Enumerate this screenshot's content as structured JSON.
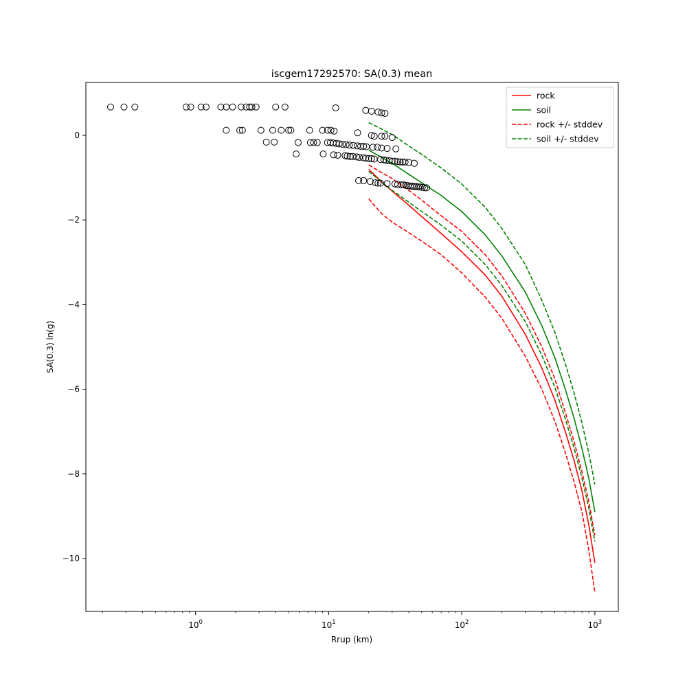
{
  "chart_data": {
    "type": "scatter",
    "title": "iscgem17292570: SA(0.3) mean",
    "xlabel": "Rrup (km)",
    "ylabel": "SA(0.3) ln(g)",
    "xscale": "log",
    "xlim": [
      0.15,
      1500
    ],
    "ylim": [
      -11.25,
      1.25
    ],
    "y_ticks": [
      0,
      -2,
      -4,
      -6,
      -8,
      -10
    ],
    "x_ticks": [
      {
        "base": "10",
        "exp": "0",
        "value": 1
      },
      {
        "base": "10",
        "exp": "1",
        "value": 10
      },
      {
        "base": "10",
        "exp": "2",
        "value": 100
      },
      {
        "base": "10",
        "exp": "3",
        "value": 1000
      }
    ],
    "grid": false,
    "legend_position": "top-right",
    "legend": [
      {
        "label": "rock",
        "color": "#ff0000",
        "style": "solid"
      },
      {
        "label": "soil",
        "color": "#008000",
        "style": "solid"
      },
      {
        "label": "rock +/- stddev",
        "color": "#ff0000",
        "style": "dashed"
      },
      {
        "label": "soil +/- stddev",
        "color": "#008000",
        "style": "dashed"
      }
    ],
    "series": [
      {
        "name": "rock",
        "color": "#ff0000",
        "style": "solid",
        "points": [
          [
            20,
            -0.8
          ],
          [
            25,
            -1.1
          ],
          [
            30,
            -1.32
          ],
          [
            40,
            -1.65
          ],
          [
            50,
            -1.92
          ],
          [
            70,
            -2.32
          ],
          [
            100,
            -2.75
          ],
          [
            150,
            -3.3
          ],
          [
            200,
            -3.8
          ],
          [
            300,
            -4.7
          ],
          [
            400,
            -5.5
          ],
          [
            500,
            -6.25
          ],
          [
            600,
            -7.0
          ],
          [
            700,
            -7.7
          ],
          [
            800,
            -8.4
          ],
          [
            900,
            -9.2
          ],
          [
            1000,
            -10.1
          ]
        ]
      },
      {
        "name": "soil",
        "color": "#008000",
        "style": "solid",
        "points": [
          [
            20,
            -0.35
          ],
          [
            25,
            -0.52
          ],
          [
            30,
            -0.66
          ],
          [
            40,
            -0.92
          ],
          [
            50,
            -1.12
          ],
          [
            70,
            -1.42
          ],
          [
            100,
            -1.8
          ],
          [
            150,
            -2.35
          ],
          [
            200,
            -2.85
          ],
          [
            300,
            -3.7
          ],
          [
            400,
            -4.5
          ],
          [
            500,
            -5.25
          ],
          [
            600,
            -6.0
          ],
          [
            700,
            -6.7
          ],
          [
            800,
            -7.4
          ],
          [
            900,
            -8.1
          ],
          [
            1000,
            -8.9
          ]
        ]
      },
      {
        "name": "rock +/- stddev",
        "color": "#ff0000",
        "style": "dashed",
        "points": [
          [
            20,
            -0.7
          ],
          [
            25,
            -0.88
          ],
          [
            30,
            -1.02
          ],
          [
            40,
            -1.3
          ],
          [
            50,
            -1.53
          ],
          [
            70,
            -1.9
          ],
          [
            100,
            -2.27
          ],
          [
            150,
            -2.82
          ],
          [
            200,
            -3.32
          ],
          [
            300,
            -4.2
          ],
          [
            400,
            -5.0
          ],
          [
            500,
            -5.75
          ],
          [
            600,
            -6.55
          ],
          [
            700,
            -7.25
          ],
          [
            800,
            -7.95
          ],
          [
            900,
            -8.65
          ],
          [
            1000,
            -9.45
          ]
        ]
      },
      {
        "name": "rock +/- stddev",
        "color": "#ff0000",
        "style": "dashed",
        "points": [
          [
            20,
            -1.5
          ],
          [
            25,
            -1.85
          ],
          [
            30,
            -2.05
          ],
          [
            40,
            -2.3
          ],
          [
            50,
            -2.5
          ],
          [
            70,
            -2.82
          ],
          [
            100,
            -3.25
          ],
          [
            150,
            -3.82
          ],
          [
            200,
            -4.32
          ],
          [
            300,
            -5.22
          ],
          [
            400,
            -6.0
          ],
          [
            500,
            -6.75
          ],
          [
            600,
            -7.5
          ],
          [
            700,
            -8.2
          ],
          [
            800,
            -8.9
          ],
          [
            900,
            -9.8
          ],
          [
            1000,
            -10.8
          ]
        ]
      },
      {
        "name": "soil +/- stddev",
        "color": "#008000",
        "style": "dashed",
        "points": [
          [
            20,
            0.3
          ],
          [
            25,
            0.15
          ],
          [
            30,
            0.02
          ],
          [
            40,
            -0.25
          ],
          [
            50,
            -0.45
          ],
          [
            70,
            -0.77
          ],
          [
            100,
            -1.15
          ],
          [
            150,
            -1.7
          ],
          [
            200,
            -2.2
          ],
          [
            300,
            -3.05
          ],
          [
            400,
            -3.9
          ],
          [
            500,
            -4.65
          ],
          [
            600,
            -5.4
          ],
          [
            700,
            -6.1
          ],
          [
            800,
            -6.8
          ],
          [
            900,
            -7.5
          ],
          [
            1000,
            -8.25
          ]
        ]
      },
      {
        "name": "soil +/- stddev",
        "color": "#008000",
        "style": "dashed",
        "points": [
          [
            20,
            -0.85
          ],
          [
            25,
            -1.1
          ],
          [
            30,
            -1.3
          ],
          [
            40,
            -1.58
          ],
          [
            50,
            -1.8
          ],
          [
            70,
            -2.12
          ],
          [
            100,
            -2.5
          ],
          [
            150,
            -3.05
          ],
          [
            200,
            -3.55
          ],
          [
            300,
            -4.4
          ],
          [
            400,
            -5.2
          ],
          [
            500,
            -5.95
          ],
          [
            600,
            -6.7
          ],
          [
            700,
            -7.4
          ],
          [
            800,
            -8.1
          ],
          [
            900,
            -8.8
          ],
          [
            1000,
            -9.6
          ]
        ]
      }
    ],
    "observations": [
      [
        0.23,
        0.67
      ],
      [
        0.29,
        0.67
      ],
      [
        0.35,
        0.67
      ],
      [
        0.85,
        0.67
      ],
      [
        0.92,
        0.67
      ],
      [
        1.1,
        0.67
      ],
      [
        1.2,
        0.67
      ],
      [
        1.55,
        0.67
      ],
      [
        1.7,
        0.67
      ],
      [
        1.9,
        0.67
      ],
      [
        2.2,
        0.67
      ],
      [
        2.4,
        0.67
      ],
      [
        2.55,
        0.67
      ],
      [
        2.65,
        0.67
      ],
      [
        2.85,
        0.67
      ],
      [
        4.0,
        0.67
      ],
      [
        4.7,
        0.67
      ],
      [
        11.3,
        0.65
      ],
      [
        19,
        0.59
      ],
      [
        21,
        0.57
      ],
      [
        23.5,
        0.55
      ],
      [
        25,
        0.53
      ],
      [
        26.5,
        0.52
      ],
      [
        1.7,
        0.12
      ],
      [
        2.15,
        0.12
      ],
      [
        2.25,
        0.12
      ],
      [
        3.1,
        0.12
      ],
      [
        3.8,
        0.12
      ],
      [
        4.4,
        0.12
      ],
      [
        5.0,
        0.12
      ],
      [
        5.2,
        0.12
      ],
      [
        7.2,
        0.12
      ],
      [
        9.0,
        0.12
      ],
      [
        9.8,
        0.12
      ],
      [
        10.4,
        0.12
      ],
      [
        11.0,
        0.1
      ],
      [
        16.5,
        0.06
      ],
      [
        21,
        0.0
      ],
      [
        22,
        -0.02
      ],
      [
        25,
        -0.02
      ],
      [
        26.5,
        -0.02
      ],
      [
        30,
        -0.05
      ],
      [
        3.4,
        -0.16
      ],
      [
        3.9,
        -0.16
      ],
      [
        5.9,
        -0.17
      ],
      [
        7.3,
        -0.17
      ],
      [
        7.7,
        -0.17
      ],
      [
        8.2,
        -0.17
      ],
      [
        9.8,
        -0.17
      ],
      [
        10.3,
        -0.17
      ],
      [
        10.8,
        -0.18
      ],
      [
        11.4,
        -0.19
      ],
      [
        12.0,
        -0.2
      ],
      [
        12.7,
        -0.21
      ],
      [
        13.5,
        -0.22
      ],
      [
        14.3,
        -0.23
      ],
      [
        15.3,
        -0.24
      ],
      [
        16.4,
        -0.25
      ],
      [
        17.4,
        -0.26
      ],
      [
        18.3,
        -0.26
      ],
      [
        19.2,
        -0.27
      ],
      [
        21.5,
        -0.28
      ],
      [
        23.2,
        -0.28
      ],
      [
        25.0,
        -0.3
      ],
      [
        27.5,
        -0.31
      ],
      [
        32.0,
        -0.32
      ],
      [
        5.7,
        -0.44
      ],
      [
        9.1,
        -0.44
      ],
      [
        10.9,
        -0.46
      ],
      [
        11.7,
        -0.47
      ],
      [
        13.3,
        -0.48
      ],
      [
        13.8,
        -0.49
      ],
      [
        14.5,
        -0.5
      ],
      [
        15.2,
        -0.5
      ],
      [
        16.2,
        -0.51
      ],
      [
        17.0,
        -0.52
      ],
      [
        18.2,
        -0.53
      ],
      [
        19.0,
        -0.54
      ],
      [
        20.0,
        -0.55
      ],
      [
        21.0,
        -0.55
      ],
      [
        22.0,
        -0.56
      ],
      [
        24.5,
        -0.57
      ],
      [
        26.0,
        -0.58
      ],
      [
        27.0,
        -0.59
      ],
      [
        28.5,
        -0.6
      ],
      [
        30.0,
        -0.61
      ],
      [
        31.5,
        -0.61
      ],
      [
        33.0,
        -0.62
      ],
      [
        34.5,
        -0.63
      ],
      [
        36.0,
        -0.63
      ],
      [
        37.5,
        -0.63
      ],
      [
        40.0,
        -0.64
      ],
      [
        44.0,
        -0.66
      ],
      [
        16.8,
        -1.07
      ],
      [
        18.3,
        -1.07
      ],
      [
        20.5,
        -1.09
      ],
      [
        22.5,
        -1.12
      ],
      [
        23.5,
        -1.13
      ],
      [
        24.5,
        -1.13
      ],
      [
        27.5,
        -1.14
      ],
      [
        31.5,
        -1.15
      ],
      [
        33.0,
        -1.16
      ],
      [
        35.0,
        -1.17
      ],
      [
        36.5,
        -1.17
      ],
      [
        38.0,
        -1.18
      ],
      [
        39.5,
        -1.19
      ],
      [
        41.0,
        -1.2
      ],
      [
        42.5,
        -1.2
      ],
      [
        44.0,
        -1.21
      ],
      [
        45.5,
        -1.21
      ],
      [
        47.0,
        -1.22
      ],
      [
        48.5,
        -1.22
      ],
      [
        50.5,
        -1.23
      ],
      [
        52.5,
        -1.24
      ],
      [
        54.5,
        -1.24
      ]
    ]
  }
}
